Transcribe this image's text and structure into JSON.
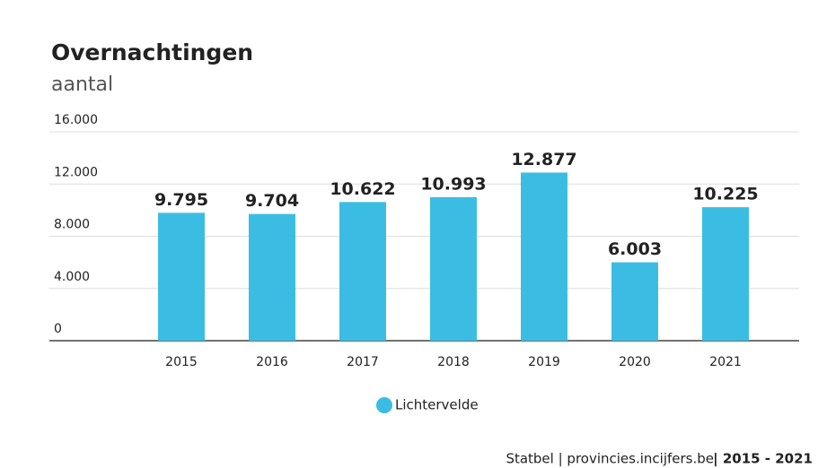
{
  "chart_data": {
    "type": "bar",
    "title": "Overnachtingen",
    "subtitle": "aantal",
    "categories": [
      "2015",
      "2016",
      "2017",
      "2018",
      "2019",
      "2020",
      "2021"
    ],
    "series": [
      {
        "name": "Lichtervelde",
        "color": "#3bbde3",
        "values": [
          9795,
          9704,
          10622,
          10993,
          12877,
          6003,
          10225
        ],
        "value_labels": [
          "9.795",
          "9.704",
          "10.622",
          "10.993",
          "12.877",
          "6.003",
          "10.225"
        ]
      }
    ],
    "ylim": [
      0,
      16000
    ],
    "yticks": [
      0,
      {
        "value": 4000,
        "label": "4.000"
      },
      {
        "value": 8000,
        "label": "8.000"
      },
      {
        "value": 12000,
        "label": "12.000"
      },
      {
        "value": 16000,
        "label": "16.000"
      }
    ],
    "grid": true,
    "legend": "bottom",
    "source": "Statbel | provincies.incijfers.be",
    "source_period": "| 2015 - 2021"
  }
}
